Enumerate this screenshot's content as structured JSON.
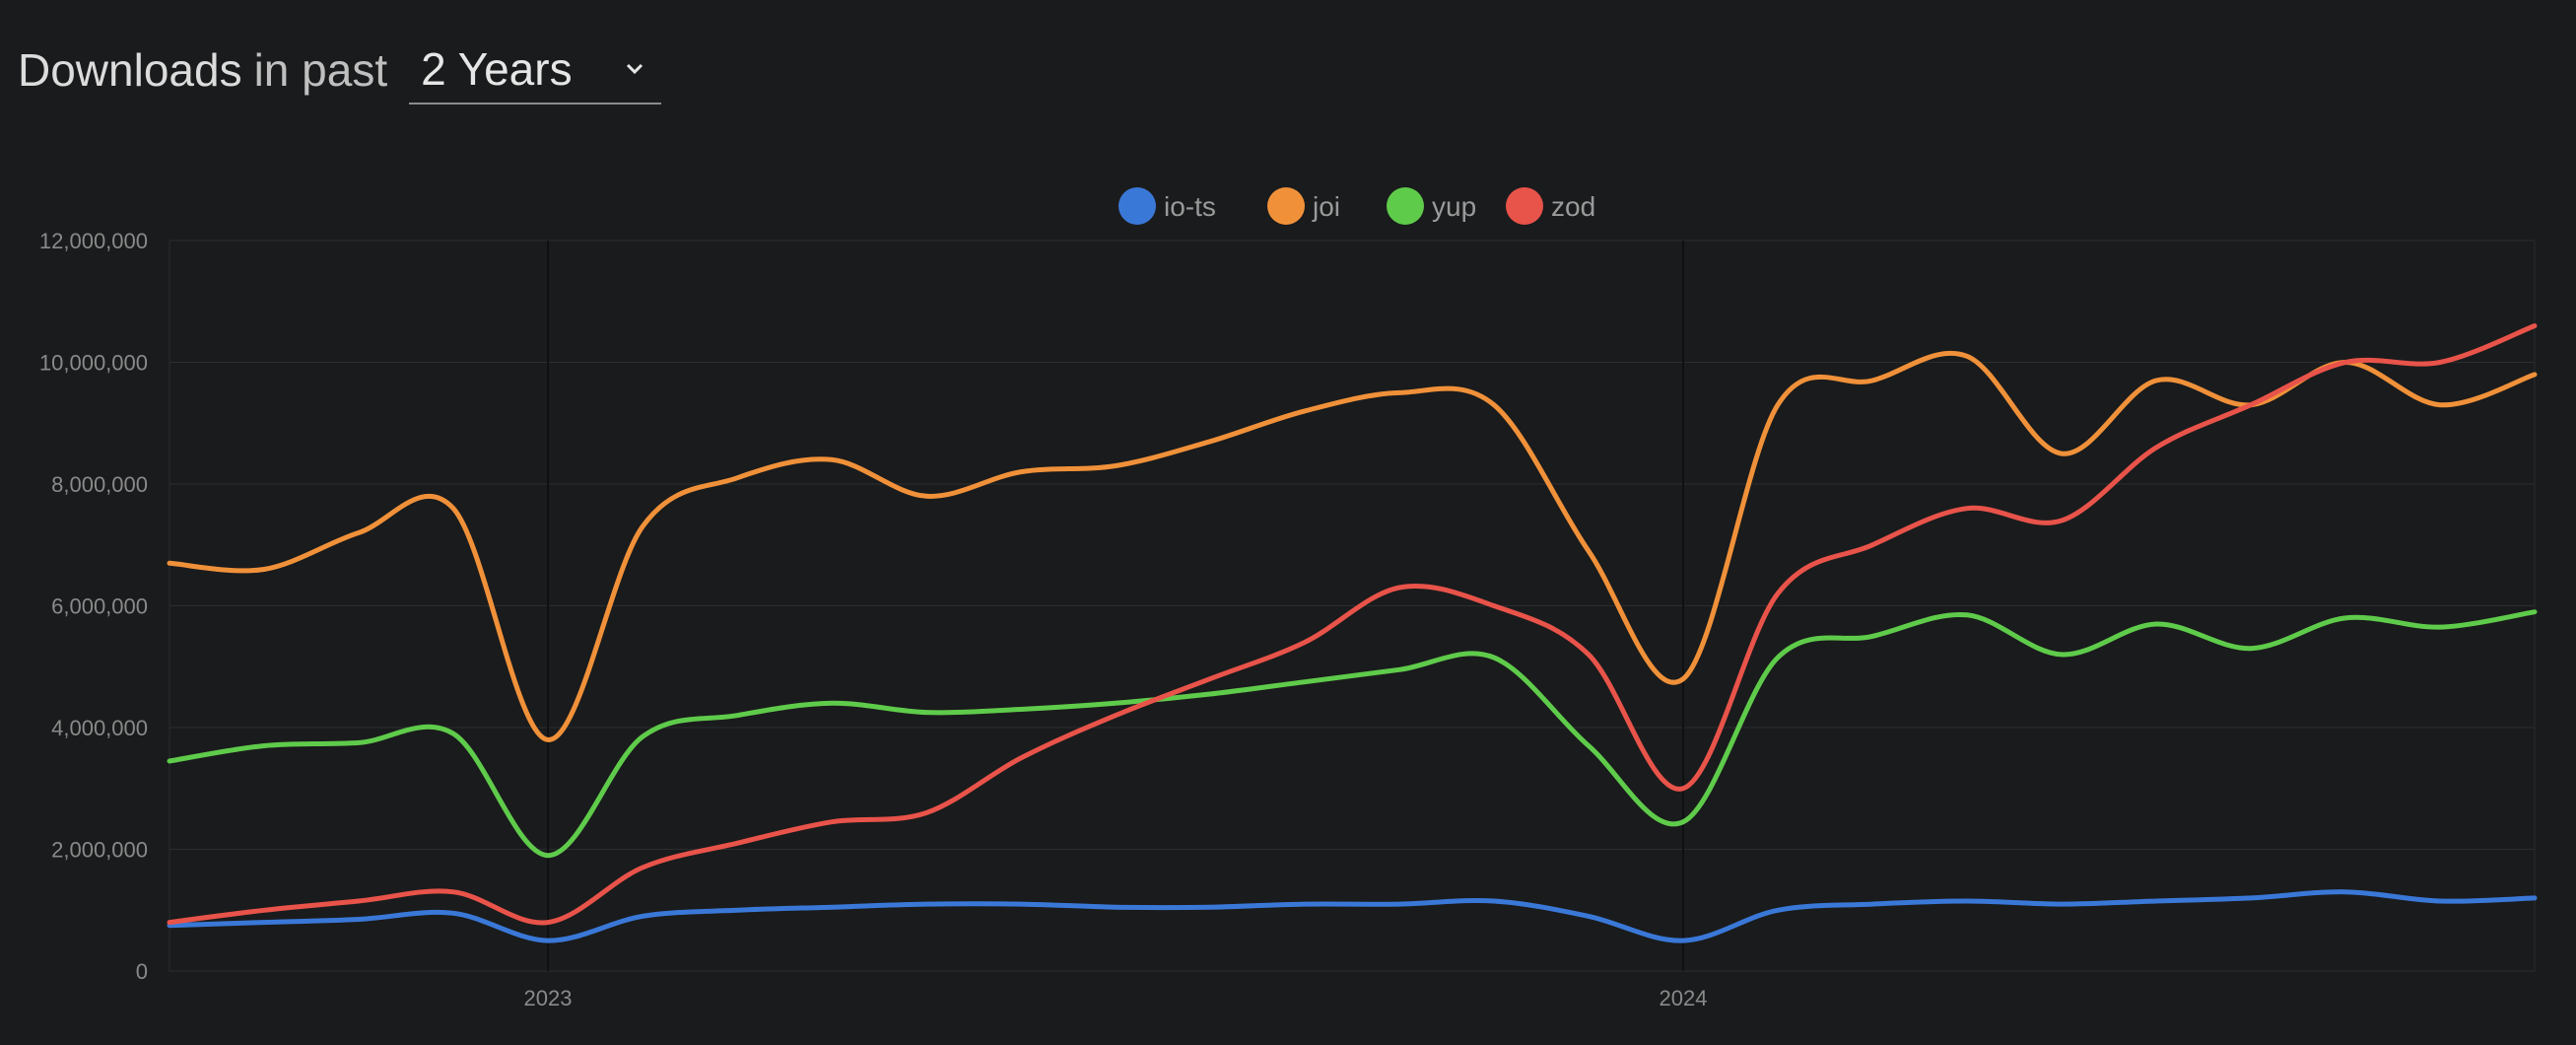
{
  "header": {
    "title_strong": "Downloads",
    "title_light": "in past",
    "range_selected": "2 Years"
  },
  "colors": {
    "background": "#1a1b1c",
    "io-ts": "#3a78d8",
    "joi": "#f0913a",
    "yup": "#5fcb4b",
    "zod": "#e8534a"
  },
  "chart_data": {
    "type": "line",
    "title": "",
    "xlabel": "",
    "ylabel": "",
    "x_range": [
      "2022-09",
      "2024-10"
    ],
    "ylim": [
      0,
      12000000
    ],
    "yticks": [
      0,
      2000000,
      4000000,
      6000000,
      8000000,
      10000000,
      12000000
    ],
    "ytick_labels": [
      "0",
      "2,000,000",
      "4,000,000",
      "6,000,000",
      "8,000,000",
      "10,000,000",
      "12,000,000"
    ],
    "xticks": [
      "2023",
      "2024"
    ],
    "grid": true,
    "legend_position": "top-center",
    "x": [
      "2022-09",
      "2022-10",
      "2022-11",
      "2022-12",
      "2023-01",
      "2023-02",
      "2023-03",
      "2023-04",
      "2023-05",
      "2023-06",
      "2023-07",
      "2023-08",
      "2023-09",
      "2023-10",
      "2023-11",
      "2023-12",
      "2024-01",
      "2024-02",
      "2024-03",
      "2024-04",
      "2024-05",
      "2024-06",
      "2024-07",
      "2024-08",
      "2024-09",
      "2024-10"
    ],
    "series": [
      {
        "name": "io-ts",
        "color": "#3a78d8",
        "values": [
          750000,
          800000,
          850000,
          950000,
          500000,
          900000,
          1000000,
          1050000,
          1100000,
          1100000,
          1050000,
          1050000,
          1100000,
          1100000,
          1150000,
          900000,
          500000,
          1000000,
          1100000,
          1150000,
          1100000,
          1150000,
          1200000,
          1300000,
          1150000,
          1200000
        ]
      },
      {
        "name": "joi",
        "color": "#f0913a",
        "values": [
          6700000,
          6600000,
          7200000,
          7600000,
          3800000,
          7300000,
          8100000,
          8400000,
          7800000,
          8200000,
          8300000,
          8700000,
          9200000,
          9500000,
          9300000,
          6900000,
          4800000,
          9300000,
          9700000,
          10100000,
          8500000,
          9700000,
          9300000,
          10000000,
          9300000,
          9800000
        ]
      },
      {
        "name": "yup",
        "color": "#5fcb4b",
        "values": [
          3450000,
          3700000,
          3750000,
          3900000,
          1900000,
          3850000,
          4200000,
          4400000,
          4250000,
          4300000,
          4400000,
          4550000,
          4750000,
          4950000,
          5150000,
          3700000,
          2450000,
          5150000,
          5500000,
          5850000,
          5200000,
          5700000,
          5300000,
          5800000,
          5650000,
          5900000
        ]
      },
      {
        "name": "zod",
        "color": "#e8534a",
        "values": [
          800000,
          1000000,
          1150000,
          1300000,
          800000,
          1700000,
          2100000,
          2450000,
          2600000,
          3500000,
          4200000,
          4800000,
          5400000,
          6300000,
          6000000,
          5200000,
          3000000,
          6200000,
          7000000,
          7600000,
          7400000,
          8600000,
          9300000,
          10000000,
          10000000,
          10600000
        ]
      }
    ]
  }
}
